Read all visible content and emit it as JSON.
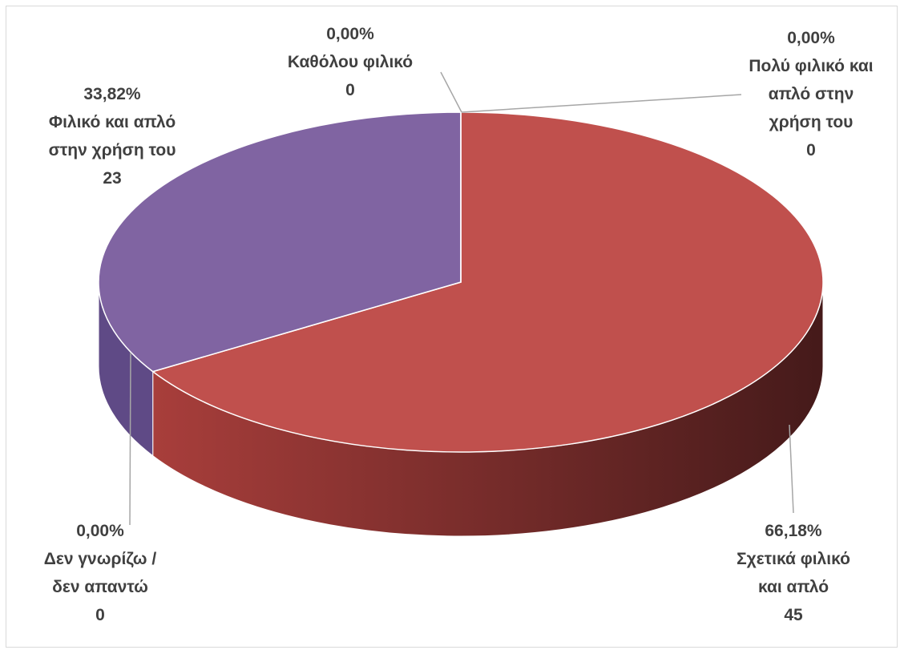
{
  "chart_data": {
    "type": "pie",
    "categories": [
      "Πολύ φιλικό και απλό στην χρήση του",
      "Σχετικά φιλικό και απλό",
      "Δεν γνωρίζω / δεν απαντώ",
      "Φιλικό και απλό στην χρήση του",
      "Καθόλου φιλικό"
    ],
    "values": [
      0,
      45,
      0,
      23,
      0
    ],
    "percentages": [
      0,
      66.18,
      0,
      33.82,
      0
    ],
    "percentage_labels": [
      "0,00%",
      "66,18%",
      "0,00%",
      "33,82%",
      "0,00%"
    ],
    "colors": [
      "#4f81bd",
      "#c0504d",
      "#9bbb59",
      "#8064a2",
      "#4bacc6"
    ]
  }
}
